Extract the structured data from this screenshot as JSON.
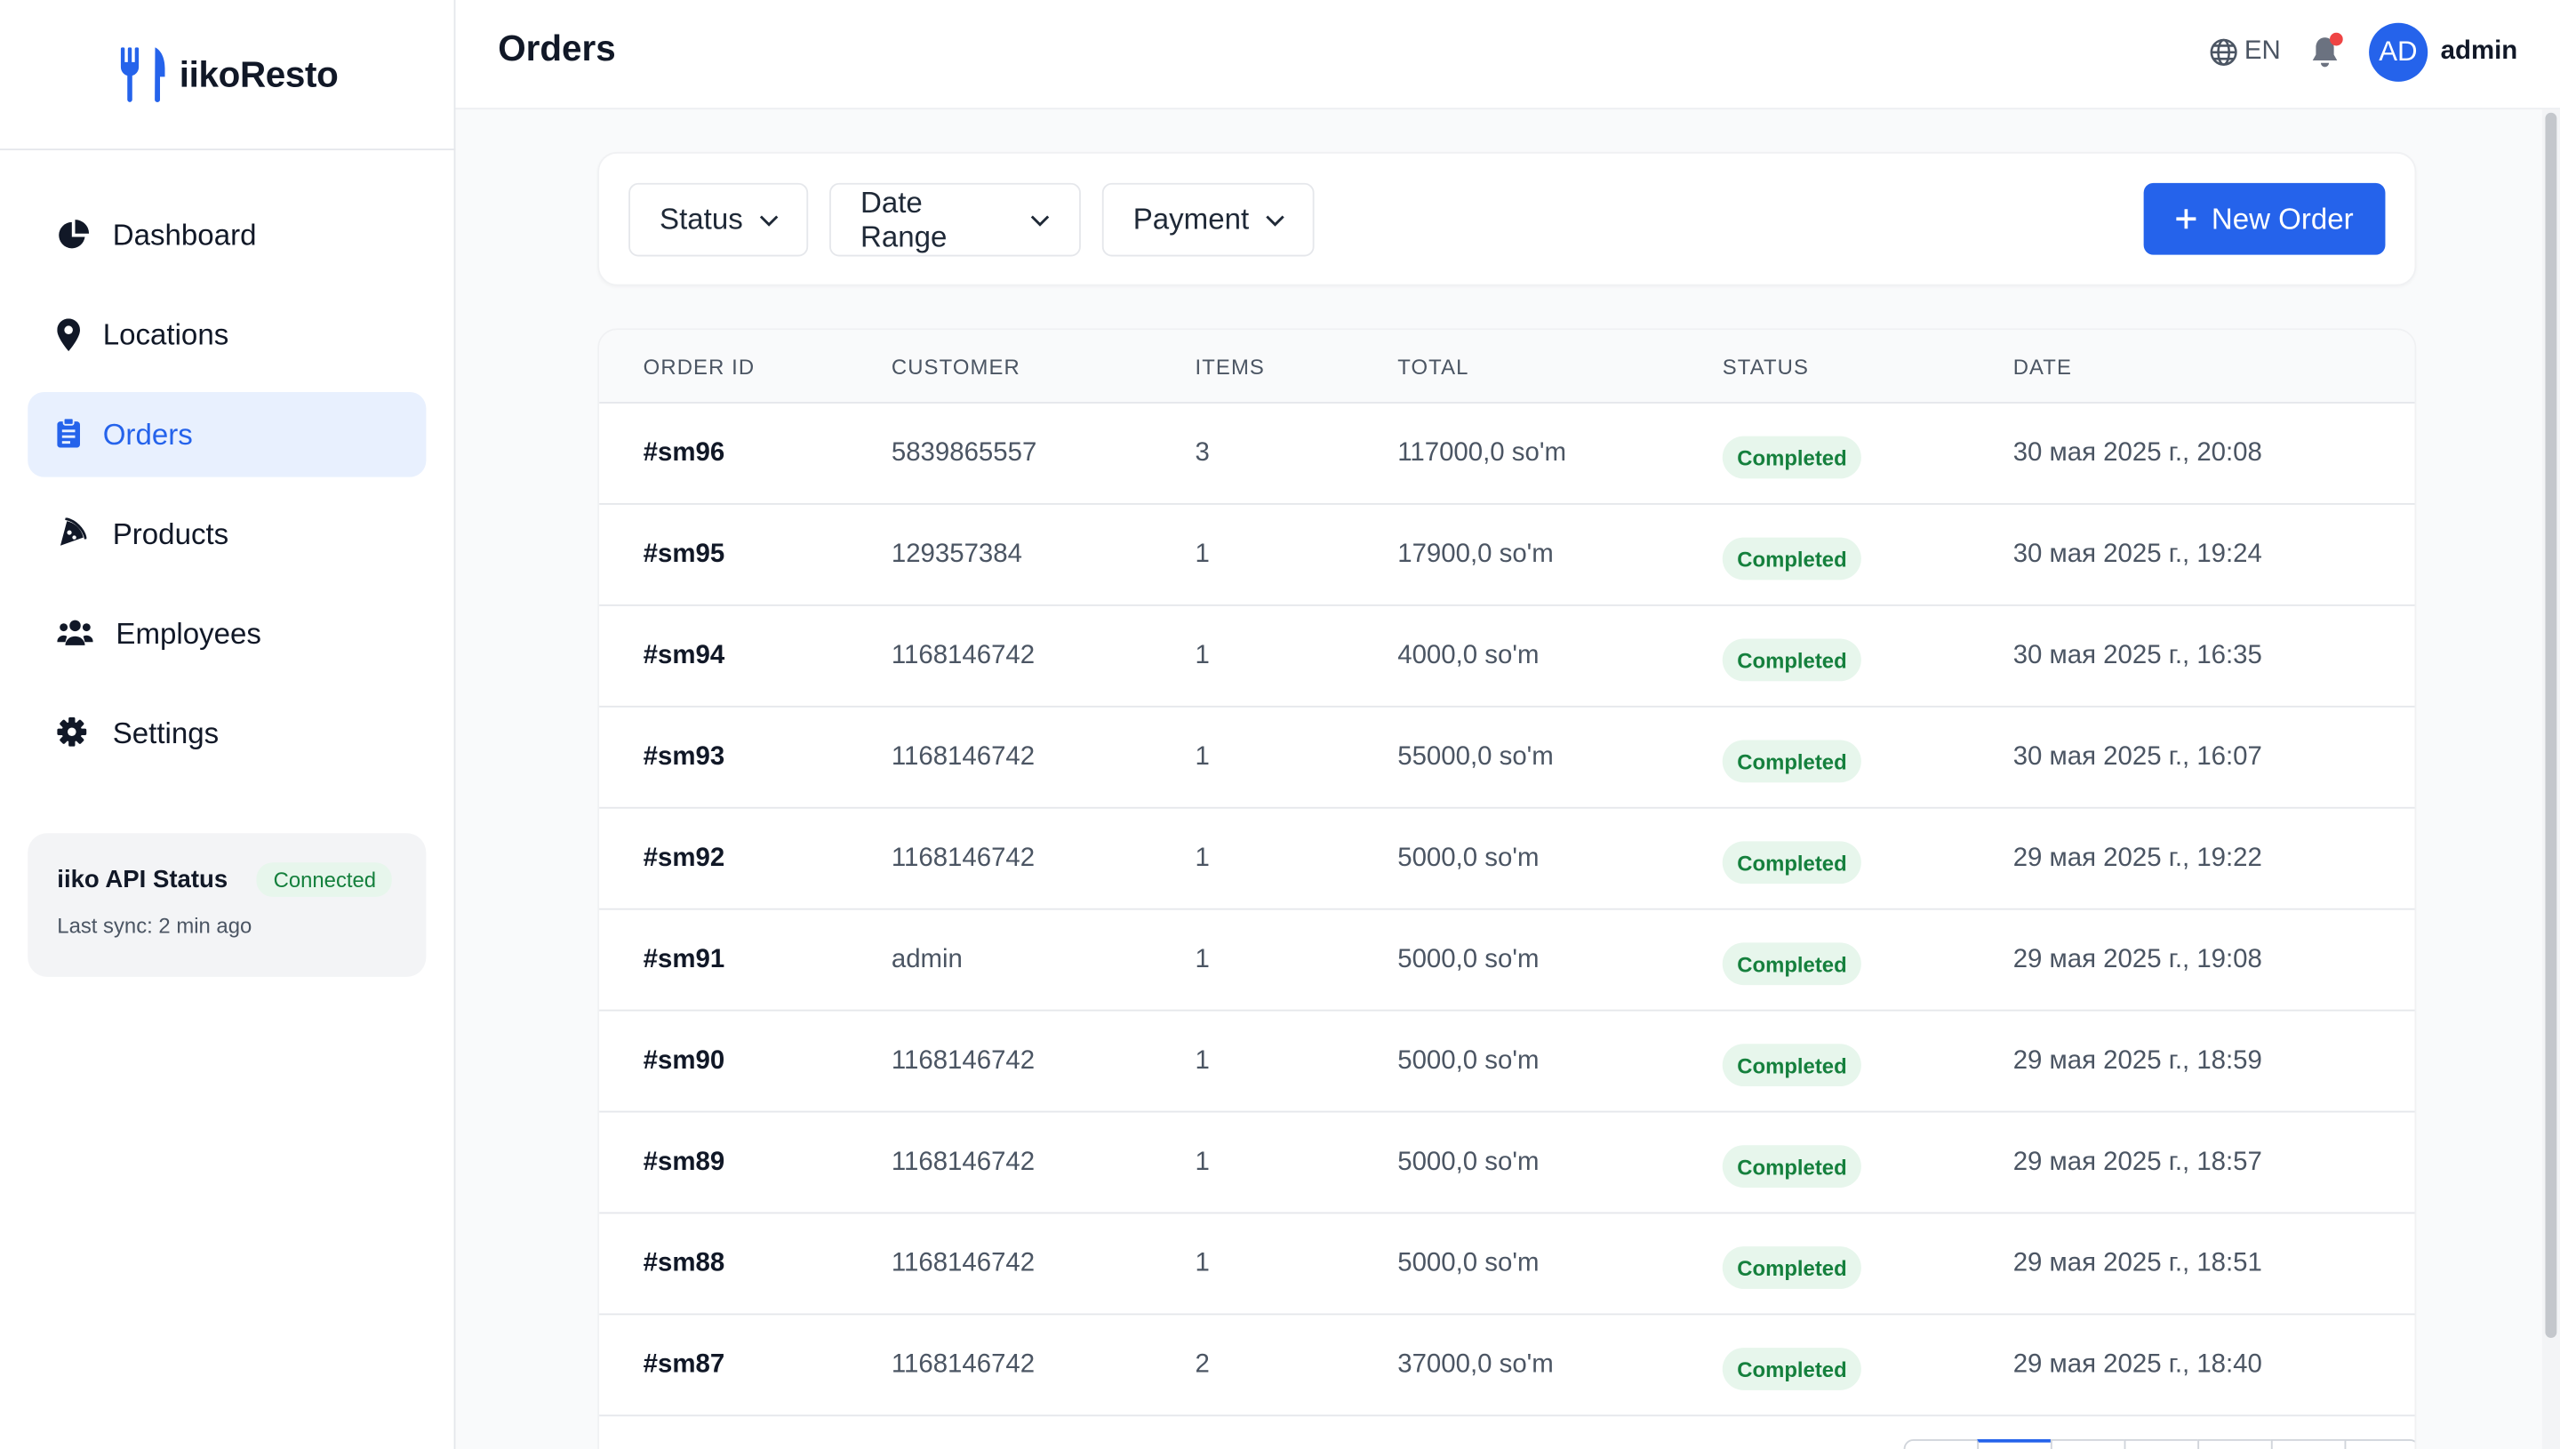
{
  "brand": {
    "name": "iikoResto",
    "icon": "fork-knife-icon"
  },
  "nav": {
    "items": [
      {
        "label": "Dashboard",
        "icon": "chart-pie-icon",
        "active": false
      },
      {
        "label": "Locations",
        "icon": "map-pin-icon",
        "active": false
      },
      {
        "label": "Orders",
        "icon": "clipboard-icon",
        "active": true
      },
      {
        "label": "Products",
        "icon": "pizza-slice-icon",
        "active": false
      },
      {
        "label": "Employees",
        "icon": "users-icon",
        "active": false
      },
      {
        "label": "Settings",
        "icon": "gear-icon",
        "active": false
      }
    ]
  },
  "api_status": {
    "title": "iiko API Status",
    "badge": "Connected",
    "last_sync": "Last sync: 2 min ago"
  },
  "header": {
    "title": "Orders",
    "language": "EN",
    "avatar_initials": "AD",
    "user_name": "admin",
    "has_notification": true
  },
  "filters": {
    "status": "Status",
    "date_range": "Date Range",
    "payment": "Payment",
    "new_order": "New Order"
  },
  "table": {
    "columns": [
      "ORDER ID",
      "CUSTOMER",
      "ITEMS",
      "TOTAL",
      "STATUS",
      "DATE"
    ],
    "rows": [
      {
        "id": "#sm96",
        "customer": "5839865557",
        "items": "3",
        "total": "117000,0 so'm",
        "status": "Completed",
        "date": "30 мая 2025 г., 20:08"
      },
      {
        "id": "#sm95",
        "customer": "129357384",
        "items": "1",
        "total": "17900,0 so'm",
        "status": "Completed",
        "date": "30 мая 2025 г., 19:24"
      },
      {
        "id": "#sm94",
        "customer": "1168146742",
        "items": "1",
        "total": "4000,0 so'm",
        "status": "Completed",
        "date": "30 мая 2025 г., 16:35"
      },
      {
        "id": "#sm93",
        "customer": "1168146742",
        "items": "1",
        "total": "55000,0 so'm",
        "status": "Completed",
        "date": "30 мая 2025 г., 16:07"
      },
      {
        "id": "#sm92",
        "customer": "1168146742",
        "items": "1",
        "total": "5000,0 so'm",
        "status": "Completed",
        "date": "29 мая 2025 г., 19:22"
      },
      {
        "id": "#sm91",
        "customer": "admin",
        "items": "1",
        "total": "5000,0 so'm",
        "status": "Completed",
        "date": "29 мая 2025 г., 19:08"
      },
      {
        "id": "#sm90",
        "customer": "1168146742",
        "items": "1",
        "total": "5000,0 so'm",
        "status": "Completed",
        "date": "29 мая 2025 г., 18:59"
      },
      {
        "id": "#sm89",
        "customer": "1168146742",
        "items": "1",
        "total": "5000,0 so'm",
        "status": "Completed",
        "date": "29 мая 2025 г., 18:57"
      },
      {
        "id": "#sm88",
        "customer": "1168146742",
        "items": "1",
        "total": "5000,0 so'm",
        "status": "Completed",
        "date": "29 мая 2025 г., 18:51"
      },
      {
        "id": "#sm87",
        "customer": "1168146742",
        "items": "2",
        "total": "37000,0 so'm",
        "status": "Completed",
        "date": "29 мая 2025 г., 18:40"
      }
    ]
  },
  "colors": {
    "accent": "#2563eb",
    "active_nav_bg": "#e8f0fe",
    "success_bg": "#e7f6ec",
    "success_text": "#15803d",
    "notification_dot": "#ef4444"
  }
}
